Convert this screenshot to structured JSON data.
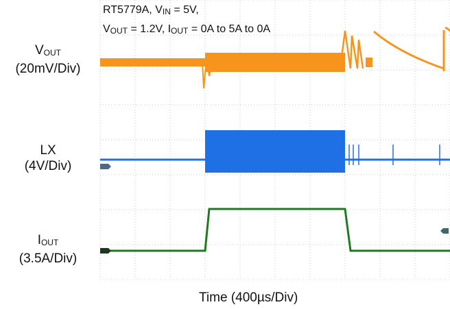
{
  "chart_data": {
    "type": "line",
    "title_line1": {
      "part": "RT5779A, V",
      "sub": "IN",
      "rest": " = 5V,"
    },
    "title_line2": {
      "v": "V",
      "v_sub": "OUT",
      "v_rest": " = 1.2V, I",
      "i_sub": "OUT",
      "i_rest": " = 0A to 5A to 0A"
    },
    "xlabel": "Time (400µs/Div)",
    "x_divisions": 10,
    "y_divisions": 8,
    "grid": "dotted",
    "channels": [
      {
        "name_main": "V",
        "name_sub": "OUT",
        "scale": "(20mV/Div)",
        "color": "#f7941d",
        "description": "load transient ripple, dip at load step, sawtooth after release"
      },
      {
        "name_main": "LX",
        "name_sub": "",
        "scale": "(4V/Div)",
        "color": "#1f6fe5",
        "description": "switching bursts during load"
      },
      {
        "name_main": "I",
        "name_sub": "OUT",
        "scale": "(3.5A/Div)",
        "color": "#1e7a1e",
        "low_A": 0,
        "high_A": 5,
        "step_up_div": 3.0,
        "step_down_div": 7.0
      }
    ]
  }
}
